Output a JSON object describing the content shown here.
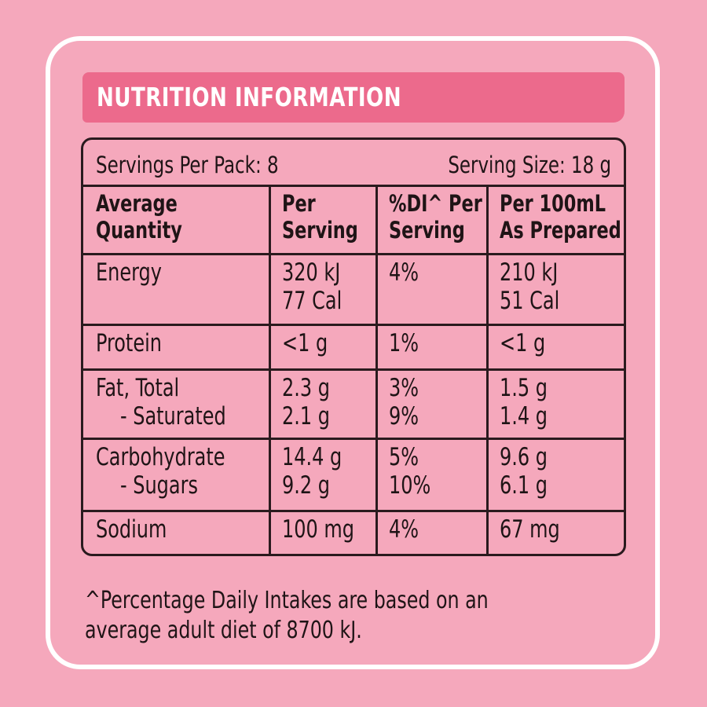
{
  "title": "NUTRITION INFORMATION",
  "servings_per_pack": "Servings Per Pack: 8",
  "serving_size": "Serving Size: 18 g",
  "headers": {
    "col1": [
      "Average",
      "Quantity"
    ],
    "col2": [
      "Per",
      "Serving"
    ],
    "col3": [
      "%DI^ Per",
      "Serving"
    ],
    "col4": [
      "Per 100mL",
      "As Prepared"
    ]
  },
  "rows": [
    {
      "label": [
        "Energy"
      ],
      "per_serving": [
        "320 kJ",
        "77 Cal"
      ],
      "di": [
        "4%"
      ],
      "per_100ml": [
        "210 kJ",
        "51 Cal"
      ]
    },
    {
      "label": [
        "Protein"
      ],
      "per_serving": [
        "<1 g"
      ],
      "di": [
        "1%"
      ],
      "per_100ml": [
        "<1 g"
      ]
    },
    {
      "label": [
        "Fat, Total",
        "- Saturated"
      ],
      "per_serving": [
        "2.3 g",
        "2.1 g"
      ],
      "di": [
        "3%",
        "9%"
      ],
      "per_100ml": [
        "1.5 g",
        "1.4 g"
      ]
    },
    {
      "label": [
        "Carbohydrate",
        "- Sugars"
      ],
      "per_serving": [
        "14.4 g",
        "9.2 g"
      ],
      "di": [
        "5%",
        "10%"
      ],
      "per_100ml": [
        "9.6 g",
        "6.1 g"
      ]
    },
    {
      "label": [
        "Sodium"
      ],
      "per_serving": [
        "100 mg"
      ],
      "di": [
        "4%"
      ],
      "per_100ml": [
        "67 mg"
      ]
    }
  ],
  "footnote": [
    "^Percentage Daily Intakes are based on an",
    "average adult diet of 8700 kJ."
  ],
  "colors": {
    "background": "#f5a8bc",
    "banner": "#ec6a8c",
    "border": "#2a1a1e",
    "card_outline": "#ffffff"
  }
}
